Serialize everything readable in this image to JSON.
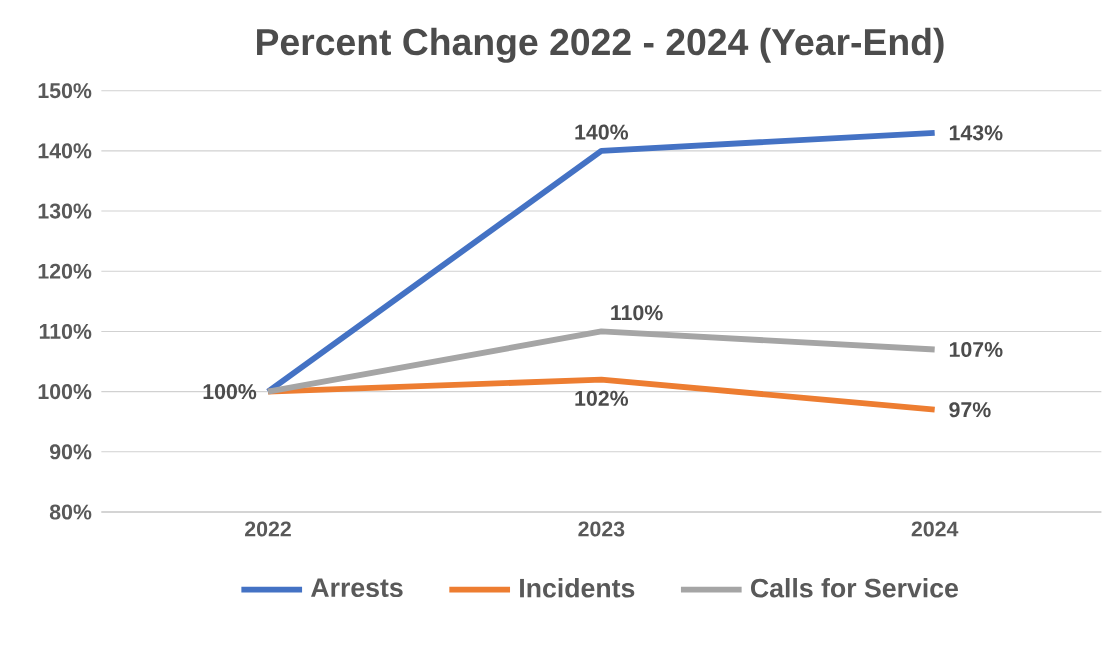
{
  "chart_data": {
    "type": "line",
    "title": "Percent Change 2022 - 2024 (Year-End)",
    "categories": [
      "2022",
      "2023",
      "2024"
    ],
    "series": [
      {
        "name": "Arrests",
        "color": "#4472c4",
        "values": [
          100,
          140,
          143
        ],
        "value_labels": [
          null,
          "140%",
          "143%"
        ]
      },
      {
        "name": "Incidents",
        "color": "#ed7d31",
        "values": [
          100,
          102,
          97
        ],
        "value_labels": [
          null,
          "102%",
          "97%"
        ]
      },
      {
        "name": "Calls for Service",
        "color": "#a5a5a5",
        "values": [
          100,
          110,
          107
        ],
        "value_labels": [
          "100%",
          "110%",
          "107%"
        ]
      }
    ],
    "ylim": [
      80,
      150
    ],
    "yticks": [
      {
        "value": 80,
        "label": "80%"
      },
      {
        "value": 90,
        "label": "90%"
      },
      {
        "value": 100,
        "label": "100%"
      },
      {
        "value": 110,
        "label": "110%"
      },
      {
        "value": 120,
        "label": "120%"
      },
      {
        "value": 130,
        "label": "130%"
      },
      {
        "value": 140,
        "label": "140%"
      },
      {
        "value": 150,
        "label": "150%"
      }
    ],
    "grid": "y",
    "legend": "bottom",
    "line_style": "solid"
  }
}
